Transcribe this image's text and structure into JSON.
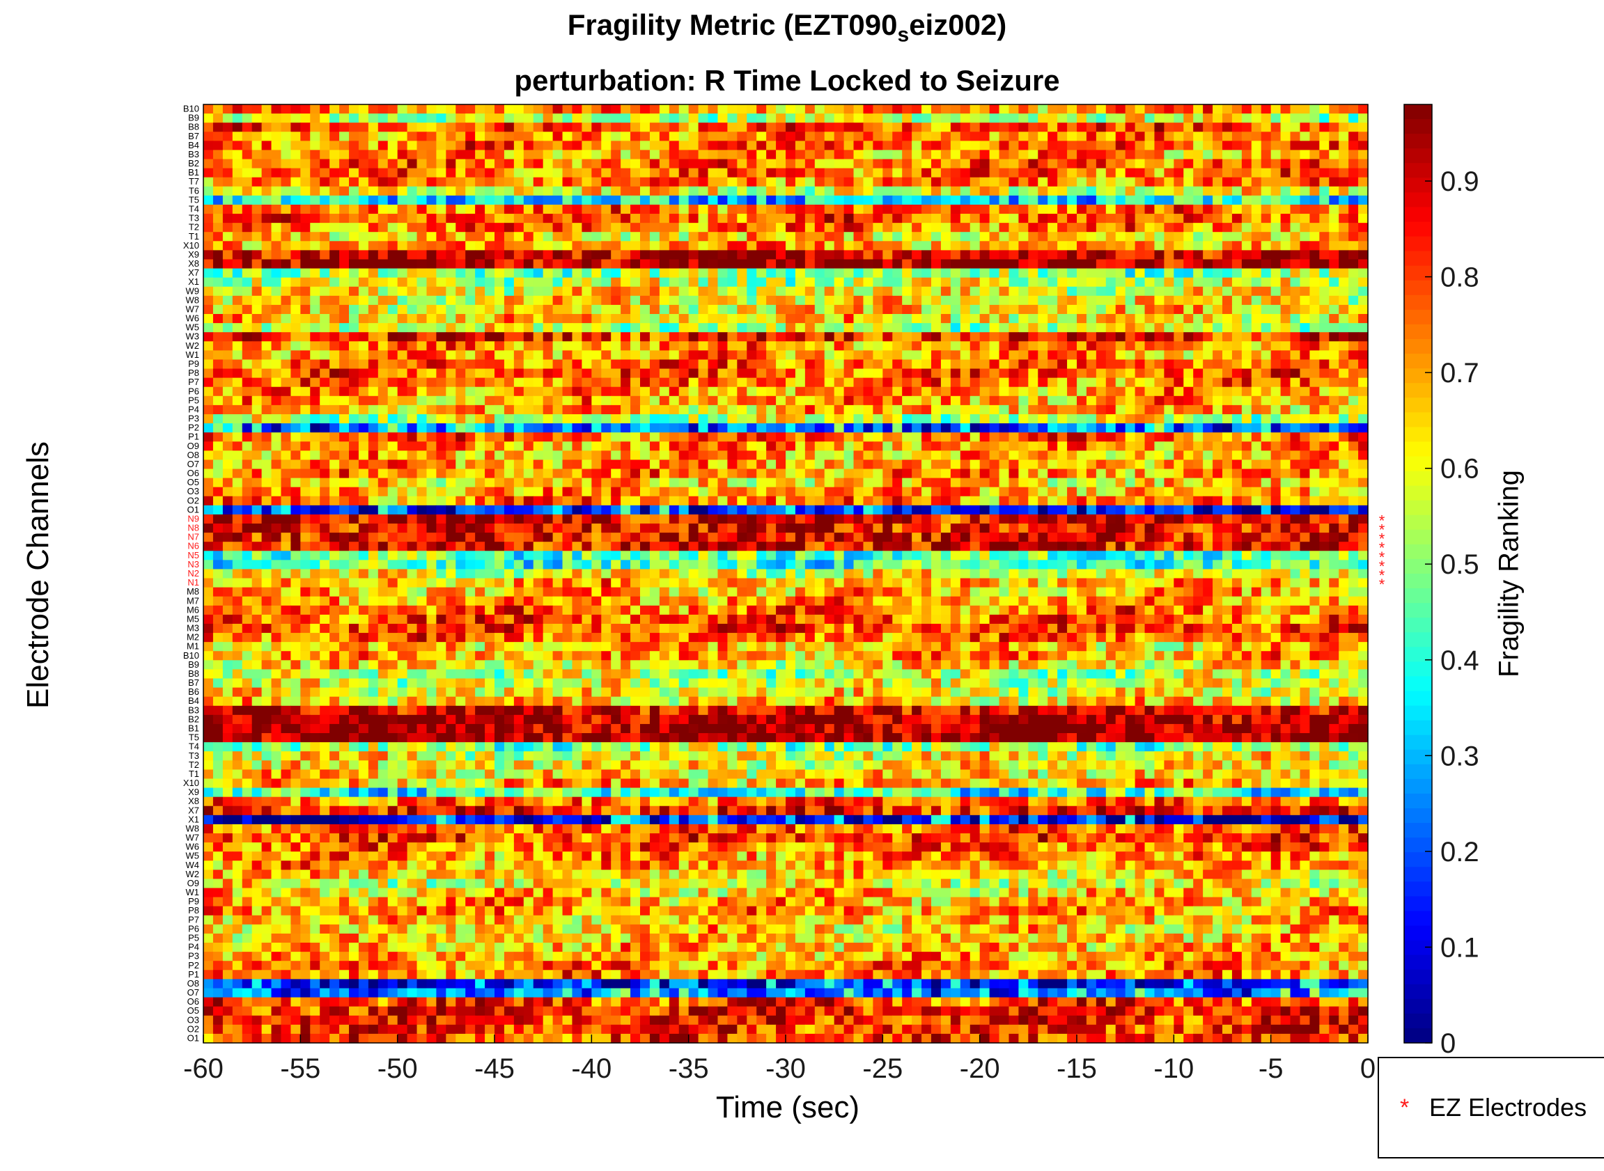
{
  "title_line1_prefix": "Fragility Metric (EZT090",
  "title_line1_sub": "s",
  "title_line1_suffix": "eiz002)",
  "title_line2": "perturbation: R Time Locked to Seizure",
  "legend": {
    "marker": "*",
    "label": "EZ Electrodes",
    "marker_color": "#ff1a1a"
  },
  "colorbar": {
    "label": "Fragility Ranking",
    "colormap": "jet",
    "ticks": [
      0,
      0.1,
      0.2,
      0.3,
      0.4,
      0.5,
      0.6,
      0.7,
      0.8,
      0.9
    ]
  },
  "chart_data": {
    "type": "heatmap",
    "title": "Fragility Metric (EZT090_seiz002)",
    "subtitle": "perturbation: R Time Locked to Seizure",
    "xlabel": "Time (sec)",
    "ylabel": "Electrode Channels",
    "xlim": [
      -60,
      0
    ],
    "xticks": [
      -60,
      -55,
      -50,
      -45,
      -40,
      -35,
      -30,
      -25,
      -20,
      -15,
      -10,
      -5,
      0
    ],
    "clim": [
      0,
      0.98
    ],
    "colorbar_label": "Fragility Ranking",
    "n_time_windows": 120,
    "channels": [
      "B10",
      "B9",
      "B8",
      "B7",
      "B4",
      "B3",
      "B2",
      "B1",
      "T7",
      "T6",
      "T5",
      "T4",
      "T3",
      "T2",
      "T1",
      "X10",
      "X9",
      "X8",
      "X7",
      "X1",
      "W9",
      "W8",
      "W7",
      "W6",
      "W5",
      "W3",
      "W2",
      "W1",
      "P9",
      "P8",
      "P7",
      "P6",
      "P5",
      "P4",
      "P3",
      "P2",
      "P1",
      "O9",
      "O8",
      "O7",
      "O6",
      "O5",
      "O3",
      "O2",
      "O1",
      "N9",
      "N8",
      "N7",
      "N6",
      "N5",
      "N3",
      "N2",
      "N1",
      "M8",
      "M7",
      "M6",
      "M5",
      "M3",
      "M2",
      "M1",
      "B10",
      "B9",
      "B8",
      "B7",
      "B6",
      "B4",
      "B3",
      "B2",
      "B1",
      "T5",
      "T4",
      "T3",
      "T2",
      "T1",
      "X10",
      "X9",
      "X8",
      "X7",
      "X1",
      "W8",
      "W7",
      "W6",
      "W5",
      "W4",
      "W2",
      "O9",
      "W1",
      "P9",
      "P8",
      "P7",
      "P6",
      "P5",
      "P4",
      "P3",
      "P2",
      "P1",
      "O8",
      "O7",
      "O6",
      "O5",
      "O3",
      "O2",
      "O1"
    ],
    "ez_channels": [
      "N9",
      "N8",
      "N7",
      "N6",
      "N5",
      "N3",
      "N2",
      "N1"
    ],
    "channel_mean_fragility": [
      0.72,
      0.55,
      0.78,
      0.73,
      0.76,
      0.7,
      0.77,
      0.75,
      0.74,
      0.6,
      0.35,
      0.75,
      0.78,
      0.74,
      0.65,
      0.7,
      0.92,
      0.95,
      0.5,
      0.55,
      0.6,
      0.62,
      0.63,
      0.65,
      0.55,
      0.85,
      0.72,
      0.7,
      0.75,
      0.77,
      0.74,
      0.72,
      0.7,
      0.68,
      0.55,
      0.2,
      0.75,
      0.72,
      0.68,
      0.7,
      0.72,
      0.65,
      0.7,
      0.73,
      0.12,
      0.88,
      0.86,
      0.88,
      0.87,
      0.45,
      0.42,
      0.6,
      0.7,
      0.68,
      0.72,
      0.75,
      0.78,
      0.8,
      0.76,
      0.65,
      0.7,
      0.62,
      0.55,
      0.58,
      0.6,
      0.65,
      0.9,
      0.96,
      0.97,
      0.96,
      0.5,
      0.6,
      0.62,
      0.65,
      0.68,
      0.4,
      0.75,
      0.85,
      0.08,
      0.78,
      0.8,
      0.76,
      0.72,
      0.7,
      0.66,
      0.6,
      0.65,
      0.7,
      0.72,
      0.68,
      0.65,
      0.66,
      0.68,
      0.7,
      0.72,
      0.73,
      0.1,
      0.2,
      0.8,
      0.85,
      0.84,
      0.82,
      0.8
    ]
  }
}
